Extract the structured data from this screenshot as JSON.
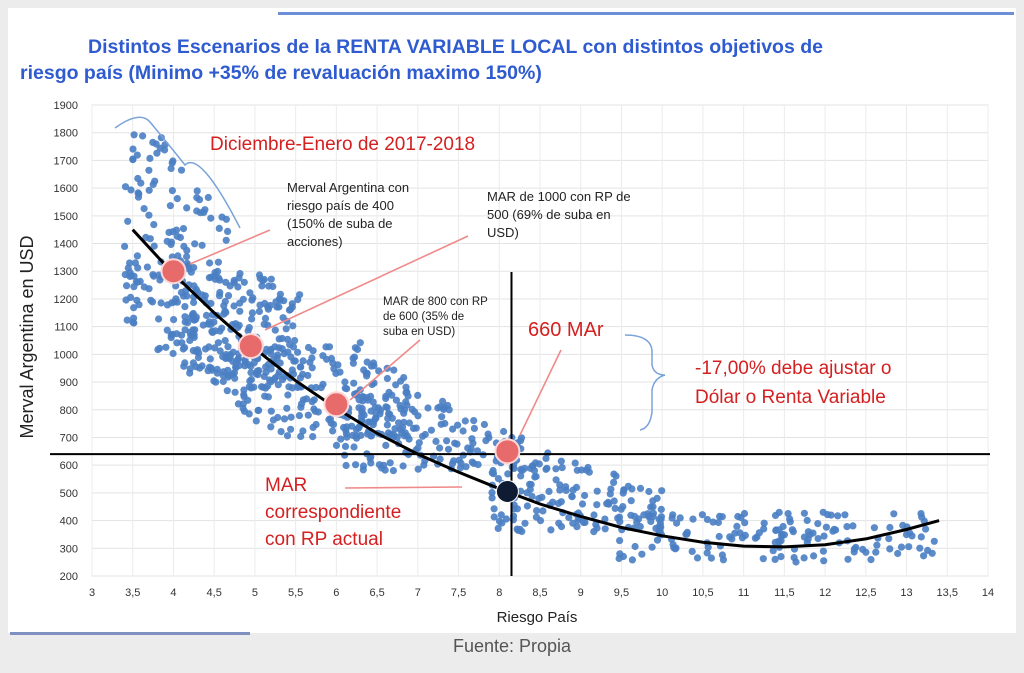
{
  "title_line1": "Distintos Escenarios de la RENTA VARIABLE LOCAL con distintos objetivos de",
  "title_line2": "riesgo país (Minimo +35% de revaluación maximo 150%)",
  "footer": "Fuente: Propia",
  "colors": {
    "scatter": "#4a7ec3",
    "marker": "#e86b6b",
    "annotation": "#d42020",
    "title": "#2f5bd0",
    "line": "#000000"
  },
  "chart_data": {
    "type": "scatter",
    "xlabel": "Riesgo País",
    "ylabel": "Merval Argentina en USD",
    "xlim": [
      3,
      14
    ],
    "ylim": [
      200,
      1900
    ],
    "x_ticks": [
      "3",
      "3,5",
      "4",
      "4,5",
      "5",
      "5,5",
      "6",
      "6,5",
      "7",
      "7,5",
      "8",
      "8,5",
      "9",
      "9,5",
      "10",
      "10,5",
      "11",
      "11,5",
      "12",
      "12,5",
      "13",
      "13,5",
      "14"
    ],
    "y_ticks": [
      "200",
      "300",
      "400",
      "500",
      "600",
      "700",
      "800",
      "900",
      "1000",
      "1100",
      "1200",
      "1300",
      "1400",
      "1500",
      "1600",
      "1700",
      "1800",
      "1900"
    ],
    "grid": true,
    "trend_curve": {
      "name": "trend",
      "x": [
        3.5,
        4,
        4.5,
        5,
        5.5,
        6,
        6.5,
        7,
        7.5,
        8,
        8.5,
        9,
        9.5,
        10,
        10.5,
        11,
        11.5,
        12,
        12.5,
        13,
        13.4
      ],
      "y": [
        1450,
        1290,
        1150,
        1020,
        905,
        805,
        715,
        640,
        575,
        515,
        460,
        415,
        375,
        345,
        322,
        308,
        305,
        313,
        334,
        368,
        400
      ]
    },
    "scatter_clusters": [
      {
        "x": [
          3.4,
          4.7
        ],
        "y": [
          1000,
          1800
        ],
        "n": 160
      },
      {
        "x": [
          4.1,
          5.6
        ],
        "y": [
          880,
          1300
        ],
        "n": 200
      },
      {
        "x": [
          4.6,
          6.9
        ],
        "y": [
          700,
          1050
        ],
        "n": 200
      },
      {
        "x": [
          6.0,
          8.6
        ],
        "y": [
          580,
          870
        ],
        "n": 160
      },
      {
        "x": [
          7.9,
          10.0
        ],
        "y": [
          360,
          640
        ],
        "n": 140
      },
      {
        "x": [
          9.4,
          13.4
        ],
        "y": [
          250,
          430
        ],
        "n": 160
      }
    ],
    "reference_lines": {
      "horizontal_y": 640,
      "vertical_x": 8.15
    },
    "key_points": [
      {
        "x": 4,
        "y": 1300
      },
      {
        "x": 4.95,
        "y": 1030
      },
      {
        "x": 6,
        "y": 820
      },
      {
        "x": 8.1,
        "y": 650
      },
      {
        "x": 8.1,
        "y": 505,
        "dark": true
      }
    ],
    "annotations": {
      "dic_ene": "Diciembre-Enero de 2017-2018",
      "rp400": [
        "Merval Argentina con",
        "riesgo país de 400",
        "(150% de suba de",
        "acciones)"
      ],
      "mar1000": [
        "MAR de 1000 con RP de",
        "500 (69% de suba en",
        "USD)"
      ],
      "mar800": [
        "MAR de 800 con RP",
        "de 600 (35% de",
        "suba en USD)"
      ],
      "mar660": "660 MAr",
      "ajuste": [
        "-17,00% debe ajustar o",
        "Dólar o Renta Variable"
      ],
      "mar_actual": [
        "MAR",
        "correspondiente",
        "con RP actual"
      ]
    }
  }
}
